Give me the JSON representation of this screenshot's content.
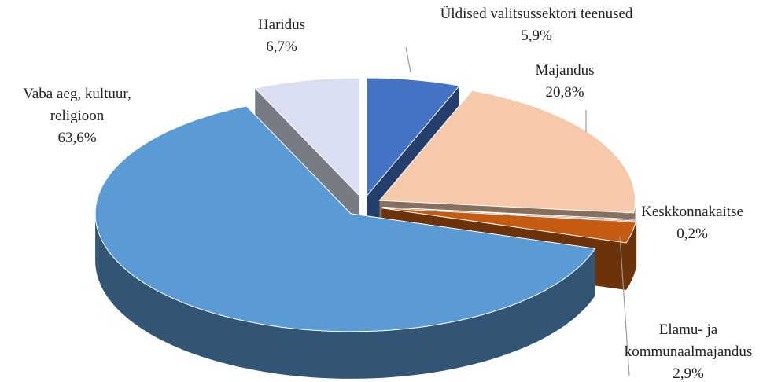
{
  "chart_data": {
    "type": "pie3d",
    "categories": [
      "Üldised valitsussektori teenused",
      "Majandus",
      "Keskkonnakaitse",
      "Elamu- ja kommunaalmajandus",
      "Vaba aeg, kultuur, religioon",
      "Haridus"
    ],
    "values": [
      5.9,
      20.8,
      0.2,
      2.9,
      63.6,
      6.7
    ],
    "value_labels": [
      "5,9%",
      "20,8%",
      "0,2%",
      "2,9%",
      "63,6%",
      "6,7%"
    ],
    "colors": [
      "#4472c4",
      "#f5c9aa",
      "#8a7060",
      "#c55a11",
      "#5b9bd5",
      "#d9dff0"
    ]
  }
}
